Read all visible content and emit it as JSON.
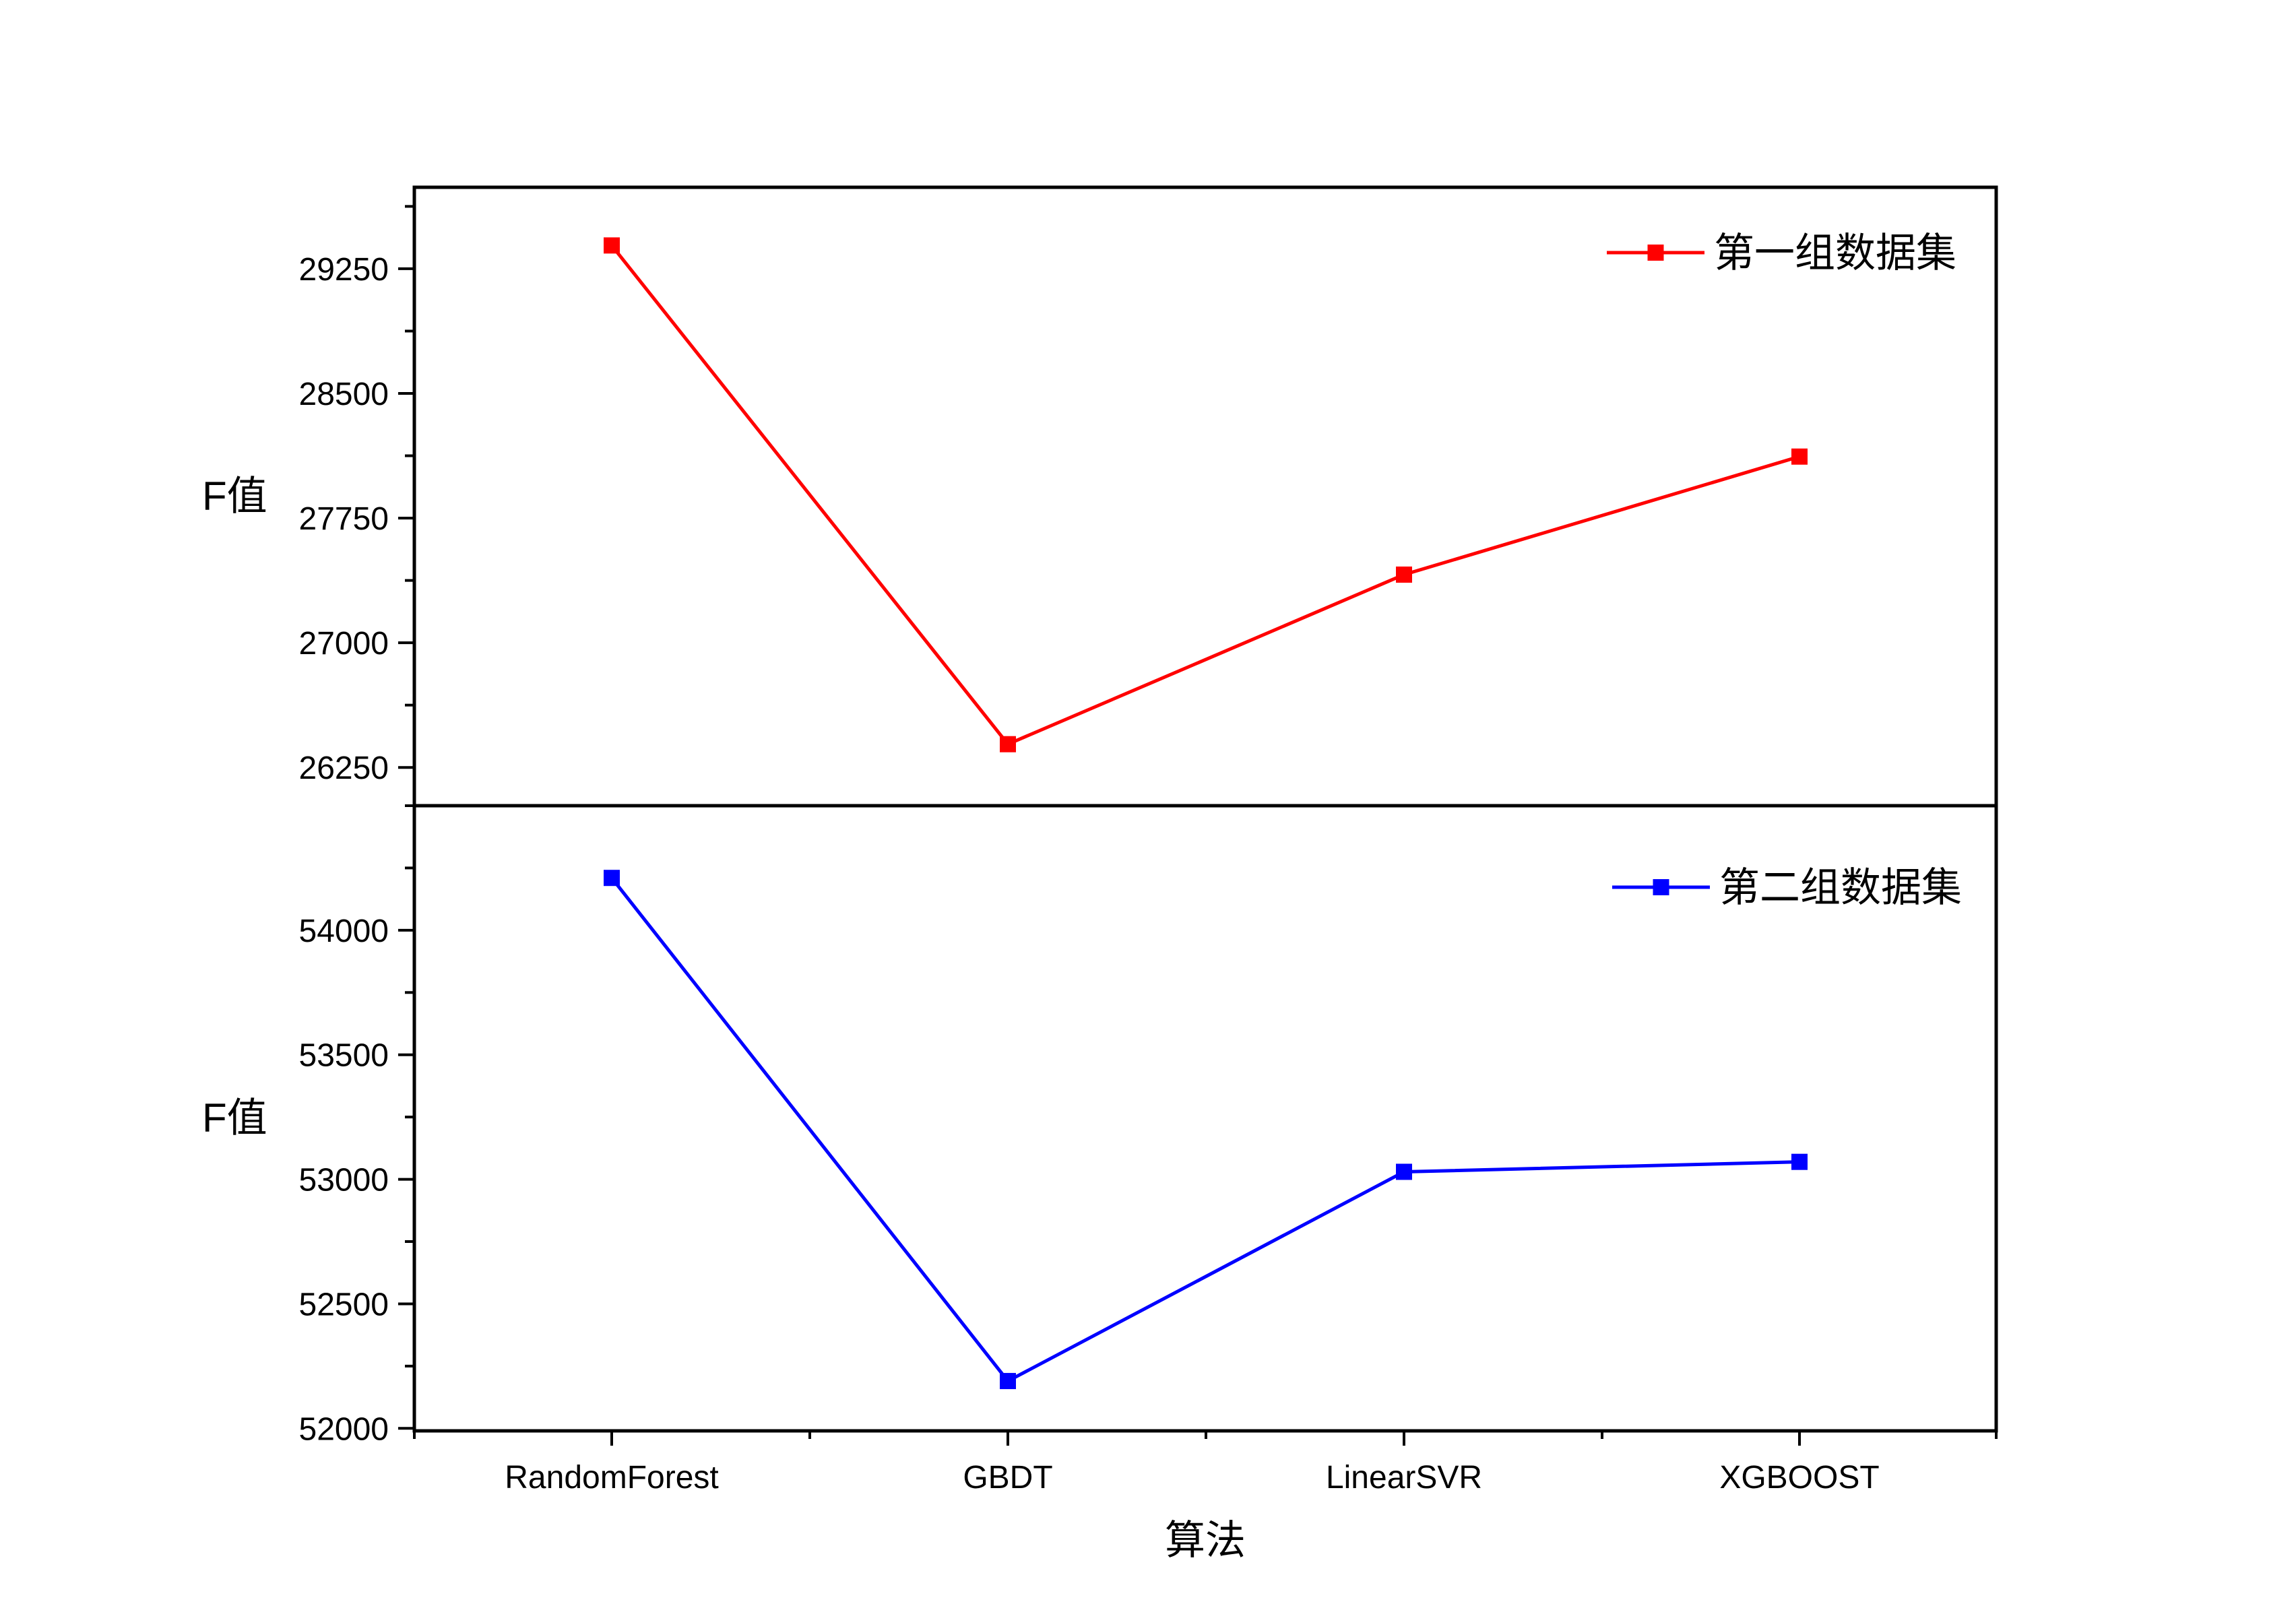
{
  "chart_data": [
    {
      "type": "line",
      "categories": [
        "RandomForest",
        "GBDT",
        "LinearSVR",
        "XGBOOST"
      ],
      "series": [
        {
          "name": "第一组数据集",
          "values": [
            29390,
            26390,
            27410,
            28120
          ],
          "color": "#ff0000"
        }
      ],
      "ylabel": "F值",
      "ylim": [
        26020,
        29740
      ],
      "yticks": [
        26250,
        27000,
        27750,
        28500,
        29250
      ],
      "legend_position": "top-right",
      "grid": false
    },
    {
      "type": "line",
      "categories": [
        "RandomForest",
        "GBDT",
        "LinearSVR",
        "XGBOOST"
      ],
      "series": [
        {
          "name": "第二组数据集",
          "values": [
            54210,
            52190,
            53030,
            53070
          ],
          "color": "#0000ff"
        }
      ],
      "xlabel": "算法",
      "ylabel": "F值",
      "ylim": [
        51990,
        54500
      ],
      "yticks": [
        52000,
        52500,
        53000,
        53500,
        54000
      ],
      "legend_position": "top-right",
      "grid": false
    }
  ]
}
